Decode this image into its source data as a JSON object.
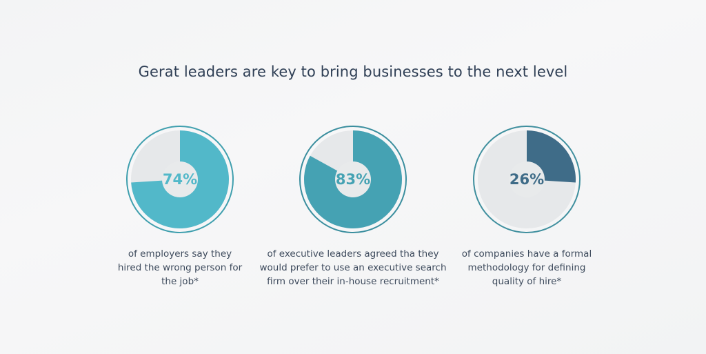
{
  "title": "Gerat leaders are key to bring businesses to the next level",
  "chart_data": [
    {
      "type": "pie",
      "value": 74,
      "label": "74%",
      "caption": "of employers say they\nhired the wrong person for\nthe job*",
      "color": "#52b8c9",
      "remainder_color": "#e6e8ea",
      "ring_color": "#3f9fae"
    },
    {
      "type": "pie",
      "value": 83,
      "label": "83%",
      "caption": "of executive leaders agreed tha they\nwould prefer to use an executive search\nfirm over their in-house recruitment*",
      "color": "#45a2b3",
      "remainder_color": "#e6e8ea",
      "ring_color": "#3a8e9e"
    },
    {
      "type": "pie",
      "value": 26,
      "label": "26%",
      "caption": "of companies have a formal\nmethodology for defining\nquality of hire*",
      "color": "#3f6c88",
      "remainder_color": "#e6e8ea",
      "ring_color": "#3f8f9e"
    }
  ]
}
